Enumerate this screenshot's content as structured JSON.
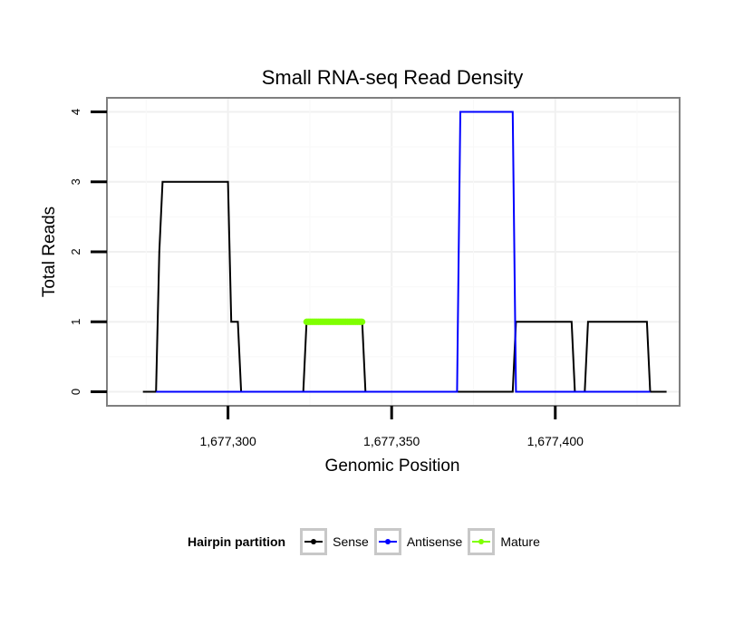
{
  "chart_data": {
    "type": "line",
    "title": "Small RNA-seq Read Density",
    "xlabel": "Genomic Position",
    "ylabel": "Total Reads",
    "xlim": [
      1677263,
      1677438
    ],
    "ylim": [
      -0.2,
      4.2
    ],
    "xticks": [
      1677300,
      1677350,
      1677400
    ],
    "xtick_labels": [
      "1,677,300",
      "1,677,350",
      "1,677,400"
    ],
    "yticks": [
      0,
      1,
      2,
      3,
      4
    ],
    "ytick_labels": [
      "0",
      "1",
      "2",
      "3",
      "4"
    ],
    "grid": true,
    "series": [
      {
        "name": "Sense",
        "color": "#000000",
        "x": [
          1677274,
          1677278,
          1677279,
          1677280,
          1677300,
          1677301,
          1677303,
          1677304,
          1677323,
          1677324,
          1677341,
          1677342,
          1677387,
          1677388,
          1677405,
          1677406,
          1677409,
          1677410,
          1677428,
          1677429,
          1677434
        ],
        "y": [
          0,
          0,
          2,
          3,
          3,
          1,
          1,
          0,
          0,
          1,
          1,
          0,
          0,
          1,
          1,
          0,
          0,
          1,
          1,
          0,
          0
        ]
      },
      {
        "name": "Antisense",
        "color": "#0000ff",
        "x": [
          1677278,
          1677370,
          1677371,
          1677387,
          1677388,
          1677429
        ],
        "y": [
          0,
          0,
          4,
          4,
          0,
          0
        ]
      },
      {
        "name": "Mature",
        "color": "#7fff00",
        "x": [
          1677324,
          1677341
        ],
        "y": [
          1,
          1
        ]
      }
    ],
    "legend": {
      "title": "Hairpin partition",
      "position": "bottom",
      "entries": [
        {
          "label": "Sense",
          "color": "#000000"
        },
        {
          "label": "Antisense",
          "color": "#0000ff"
        },
        {
          "label": "Mature",
          "color": "#7fff00"
        }
      ]
    }
  }
}
